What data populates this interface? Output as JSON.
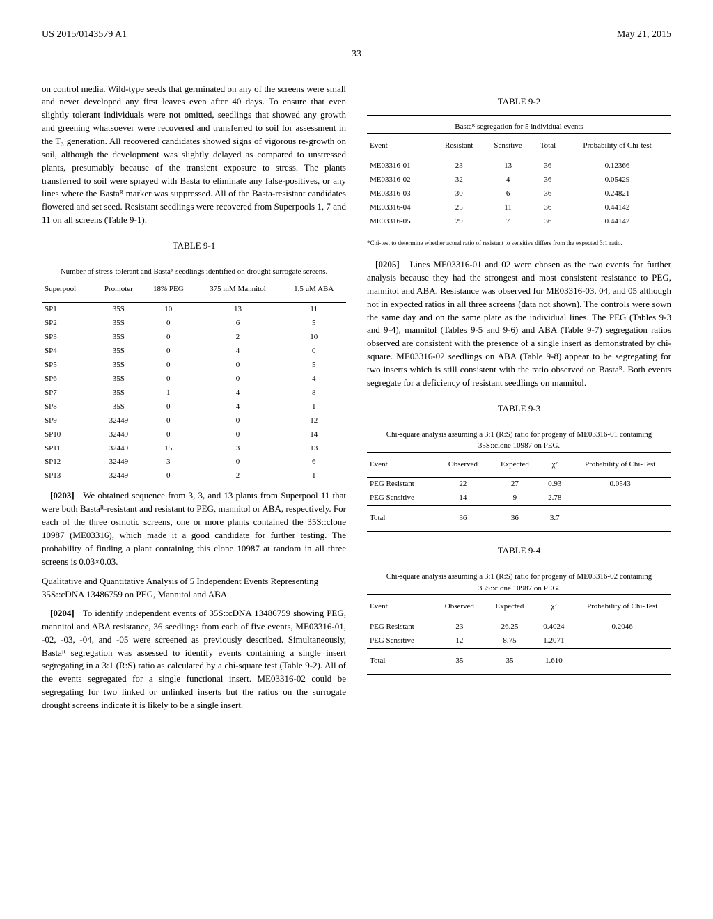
{
  "header": {
    "pub_no": "US 2015/0143579 A1",
    "date": "May 21, 2015"
  },
  "page_number": "33",
  "col1": {
    "p1": "on control media. Wild-type seeds that germinated on any of the screens were small and never developed any first leaves even after 40 days. To ensure that even slightly tolerant individuals were not omitted, seedlings that showed any growth and greening whatsoever were recovered and transferred to soil for assessment in the T₃ generation. All recovered candidates showed signs of vigorous re-growth on soil, although the development was slightly delayed as compared to unstressed plants, presumably because of the transient exposure to stress. The plants transferred to soil were sprayed with Basta to eliminate any false-positives, or any lines where the Bastaᴿ marker was suppressed. All of the Basta-resistant candidates flowered and set seed. Resistant seedlings were recovered from Superpools 1, 7 and 11 on all screens (Table 9-1).",
    "table91": {
      "label": "TABLE 9-1",
      "caption": "Number of stress-tolerant and Bastaᴿ seedlings identified on drought surrogate screens.",
      "headers": [
        "Superpool",
        "Promoter",
        "18% PEG",
        "375 mM Mannitol",
        "1.5 uM ABA"
      ],
      "rows": [
        [
          "SP1",
          "35S",
          "10",
          "13",
          "11"
        ],
        [
          "SP2",
          "35S",
          "0",
          "6",
          "5"
        ],
        [
          "SP3",
          "35S",
          "0",
          "2",
          "10"
        ],
        [
          "SP4",
          "35S",
          "0",
          "4",
          "0"
        ],
        [
          "SP5",
          "35S",
          "0",
          "0",
          "5"
        ],
        [
          "SP6",
          "35S",
          "0",
          "0",
          "4"
        ],
        [
          "SP7",
          "35S",
          "1",
          "4",
          "8"
        ],
        [
          "SP8",
          "35S",
          "0",
          "4",
          "1"
        ],
        [
          "SP9",
          "32449",
          "0",
          "0",
          "12"
        ],
        [
          "SP10",
          "32449",
          "0",
          "0",
          "14"
        ],
        [
          "SP11",
          "32449",
          "15",
          "3",
          "13"
        ],
        [
          "SP12",
          "32449",
          "3",
          "0",
          "6"
        ],
        [
          "SP13",
          "32449",
          "0",
          "2",
          "1"
        ]
      ]
    },
    "p0203_num": "[0203]",
    "p0203": "We obtained sequence from 3, 3, and 13 plants from Superpool 11 that were both Bastaᴿ-resistant and resistant to PEG, mannitol or ABA, respectively. For each of the three osmotic screens, one or more plants contained the 35S::clone 10987 (ME03316), which made it a good candidate for further testing. The probability of finding a plant containing this clone 10987 at random in all three screens is 0.03×0.03.",
    "subhead": "Qualitative and Quantitative Analysis of 5 Independent Events Representing 35S::cDNA 13486759 on PEG, Mannitol and ABA",
    "p0204_num": "[0204]",
    "p0204": "To identify independent events of 35S::cDNA 13486759 showing PEG, mannitol and ABA resistance, 36 seedlings from each of five events, ME03316-01, -02, -03, -04, and -05 were screened as previously described. Simultaneously, Bastaᴿ segregation was assessed to identify events containing a single insert segregating in a 3:1 (R:S) ratio as calculated by a chi-square test (Table 9-2). All of the events segregated for a single functional insert. ME03316-02 could be segregating for two linked or unlinked inserts but the ratios on the surrogate drought screens indicate it is likely to be a single insert."
  },
  "col2": {
    "table92": {
      "label": "TABLE 9-2",
      "caption": "Bastaᴿ segregation for 5 individual events",
      "headers": [
        "Event",
        "Resistant",
        "Sensitive",
        "Total",
        "Probability of Chi-test"
      ],
      "rows": [
        [
          "ME03316-01",
          "23",
          "13",
          "36",
          "0.12366"
        ],
        [
          "ME03316-02",
          "32",
          "4",
          "36",
          "0.05429"
        ],
        [
          "ME03316-03",
          "30",
          "6",
          "36",
          "0.24821"
        ],
        [
          "ME03316-04",
          "25",
          "11",
          "36",
          "0.44142"
        ],
        [
          "ME03316-05",
          "29",
          "7",
          "36",
          "0.44142"
        ]
      ],
      "footnote": "*Chi-test to determine whether actual ratio of resistant to sensitive differs from the expected 3:1 ratio."
    },
    "p0205_num": "[0205]",
    "p0205": "Lines ME03316-01 and 02 were chosen as the two events for further analysis because they had the strongest and most consistent resistance to PEG, mannitol and ABA. Resistance was observed for ME03316-03, 04, and 05 although not in expected ratios in all three screens (data not shown). The controls were sown the same day and on the same plate as the individual lines. The PEG (Tables 9-3 and 9-4), mannitol (Tables 9-5 and 9-6) and ABA (Table 9-7) segregation ratios observed are consistent with the presence of a single insert as demonstrated by chi-square. ME03316-02 seedlings on ABA (Table 9-8) appear to be segregating for two inserts which is still consistent with the ratio observed on Bastaᴿ. Both events segregate for a deficiency of resistant seedlings on mannitol.",
    "table93": {
      "label": "TABLE 9-3",
      "caption": "Chi-square analysis assuming a 3:1 (R:S) ratio for progeny of ME03316-01 containing 35S::clone 10987 on PEG.",
      "headers": [
        "Event",
        "Observed",
        "Expected",
        "χ²",
        "Probability of Chi-Test"
      ],
      "rows": [
        [
          "PEG Resistant",
          "22",
          "27",
          "0.93",
          "0.0543"
        ],
        [
          "PEG Sensitive",
          "14",
          "9",
          "2.78",
          ""
        ]
      ],
      "total": [
        "Total",
        "36",
        "36",
        "3.7",
        ""
      ]
    },
    "table94": {
      "label": "TABLE 9-4",
      "caption": "Chi-square analysis assuming a 3:1 (R:S) ratio for progeny of ME03316-02 containing 35S::clone 10987 on PEG.",
      "headers": [
        "Event",
        "Observed",
        "Expected",
        "χ²",
        "Probability of Chi-Test"
      ],
      "rows": [
        [
          "PEG Resistant",
          "23",
          "26.25",
          "0.4024",
          "0.2046"
        ],
        [
          "PEG Sensitive",
          "12",
          "8.75",
          "1.2071",
          ""
        ]
      ],
      "total": [
        "Total",
        "35",
        "35",
        "1.610",
        ""
      ]
    }
  }
}
